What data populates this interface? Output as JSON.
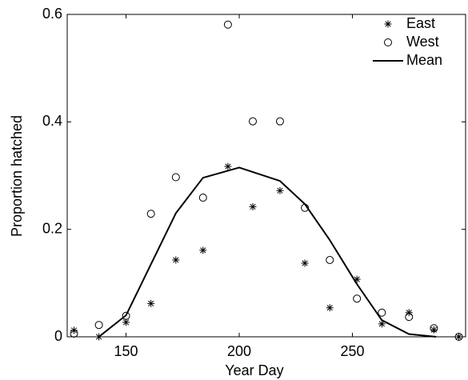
{
  "chart_data": {
    "type": "scatter-line",
    "xlabel": "Year Day",
    "ylabel": "Proportion hatched",
    "xlim": [
      124,
      300
    ],
    "ylim": [
      0,
      0.6
    ],
    "xticks": [
      150,
      200,
      250
    ],
    "yticks": [
      0,
      0.2,
      0.4,
      0.6
    ],
    "grid": false,
    "legend": "upper right",
    "series": [
      {
        "name": "East",
        "marker": "asterisk",
        "color": "#000000",
        "x": [
          127,
          138,
          150,
          161,
          172,
          184,
          195,
          206,
          218,
          229,
          240,
          252,
          263,
          275,
          286,
          297
        ],
        "values": [
          0.012,
          0,
          0.027,
          0.062,
          0.143,
          0.161,
          0.317,
          0.242,
          0.272,
          0.137,
          0.054,
          0.107,
          0.024,
          0.045,
          0.013,
          0
        ]
      },
      {
        "name": "West",
        "marker": "circle",
        "color": "#000000",
        "x": [
          127,
          138,
          150,
          161,
          172,
          184,
          195,
          206,
          218,
          229,
          240,
          252,
          263,
          275,
          286,
          297
        ],
        "values": [
          0.006,
          0.022,
          0.039,
          0.229,
          0.297,
          0.259,
          0.581,
          0.401,
          0.401,
          0.24,
          0.143,
          0.071,
          0.045,
          0.037,
          0.016,
          0
        ]
      },
      {
        "name": "Mean",
        "marker": "line",
        "color": "#000000",
        "x": [
          138,
          150,
          161,
          172,
          184,
          200,
          218,
          229,
          240,
          252,
          263,
          275,
          287
        ],
        "values": [
          0,
          0.04,
          0.135,
          0.23,
          0.296,
          0.315,
          0.29,
          0.247,
          0.18,
          0.098,
          0.031,
          0.005,
          0
        ]
      }
    ]
  }
}
